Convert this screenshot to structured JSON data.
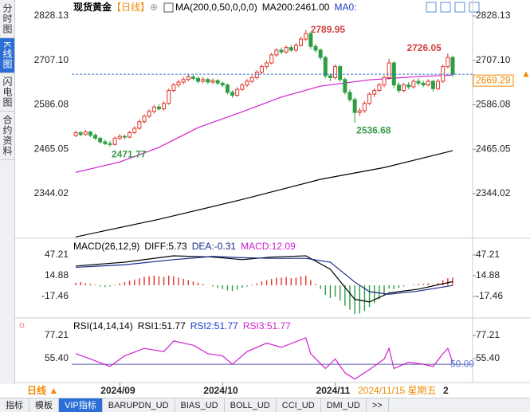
{
  "sidebar_tabs": [
    "分时图",
    "K线图",
    "闪电图",
    "合约资料"
  ],
  "toolbar": {
    "title": "现货黄金",
    "period": "【日线】"
  },
  "chart_data": [
    {
      "type": "candlestick",
      "indicator": "MA(200,0,50,0,0,0)",
      "legend": [
        "MA200:2461.00",
        "MA0:"
      ],
      "up_color": "#e0352b",
      "down_color": "#2e9e43",
      "ylim": [
        2224.5,
        2854.2
      ],
      "yticks": [
        2828.13,
        {
          "value": 2707.1,
          "label": "2707.10"
        },
        2586.08,
        2465.05,
        2344.02
      ],
      "candles": [
        [
          2502,
          2516,
          2498,
          2510
        ],
        [
          2510,
          2514,
          2500,
          2505
        ],
        [
          2505,
          2518,
          2502,
          2512
        ],
        [
          2512,
          2515,
          2498,
          2503
        ],
        [
          2503,
          2508,
          2490,
          2495
        ],
        [
          2495,
          2499,
          2480,
          2485
        ],
        [
          2485,
          2492,
          2476,
          2480
        ],
        [
          2480,
          2488,
          2471.77,
          2478
        ],
        [
          2478,
          2500,
          2475,
          2495
        ],
        [
          2495,
          2506,
          2490,
          2500
        ],
        [
          2500,
          2505,
          2492,
          2498
        ],
        [
          2498,
          2515,
          2495,
          2510
        ],
        [
          2510,
          2528,
          2506,
          2522
        ],
        [
          2522,
          2546,
          2518,
          2540
        ],
        [
          2540,
          2560,
          2535,
          2555
        ],
        [
          2555,
          2574,
          2550,
          2568
        ],
        [
          2568,
          2586,
          2562,
          2580
        ],
        [
          2580,
          2588,
          2570,
          2575
        ],
        [
          2575,
          2596,
          2570,
          2590
        ],
        [
          2590,
          2630,
          2586,
          2625
        ],
        [
          2625,
          2646,
          2620,
          2640
        ],
        [
          2640,
          2654,
          2634,
          2648
        ],
        [
          2648,
          2662,
          2642,
          2655
        ],
        [
          2655,
          2670,
          2650,
          2662
        ],
        [
          2662,
          2668,
          2652,
          2658
        ],
        [
          2658,
          2664,
          2644,
          2650
        ],
        [
          2650,
          2662,
          2645,
          2655
        ],
        [
          2655,
          2660,
          2642,
          2648
        ],
        [
          2648,
          2658,
          2643,
          2652
        ],
        [
          2652,
          2656,
          2640,
          2645
        ],
        [
          2645,
          2650,
          2634,
          2640
        ],
        [
          2640,
          2644,
          2614,
          2620
        ],
        [
          2620,
          2626,
          2605,
          2612
        ],
        [
          2612,
          2634,
          2608,
          2628
        ],
        [
          2628,
          2646,
          2624,
          2640
        ],
        [
          2640,
          2656,
          2635,
          2650
        ],
        [
          2650,
          2666,
          2645,
          2660
        ],
        [
          2660,
          2680,
          2655,
          2675
        ],
        [
          2675,
          2696,
          2670,
          2690
        ],
        [
          2690,
          2706,
          2684,
          2700
        ],
        [
          2700,
          2728,
          2696,
          2722
        ],
        [
          2722,
          2740,
          2716,
          2735
        ],
        [
          2735,
          2742,
          2724,
          2730
        ],
        [
          2730,
          2748,
          2725,
          2742
        ],
        [
          2742,
          2750,
          2730,
          2735
        ],
        [
          2735,
          2754,
          2730,
          2748
        ],
        [
          2748,
          2772,
          2744,
          2765
        ],
        [
          2765,
          2789.95,
          2760,
          2780
        ],
        [
          2780,
          2784,
          2738,
          2745
        ],
        [
          2745,
          2752,
          2728,
          2735
        ],
        [
          2735,
          2740,
          2708,
          2715
        ],
        [
          2715,
          2720,
          2658,
          2665
        ],
        [
          2665,
          2672,
          2650,
          2660
        ],
        [
          2660,
          2696,
          2655,
          2690
        ],
        [
          2690,
          2694,
          2648,
          2655
        ],
        [
          2655,
          2660,
          2614,
          2620
        ],
        [
          2620,
          2628,
          2594,
          2600
        ],
        [
          2600,
          2606,
          2536.68,
          2565
        ],
        [
          2565,
          2578,
          2556,
          2570
        ],
        [
          2570,
          2596,
          2564,
          2590
        ],
        [
          2590,
          2620,
          2585,
          2615
        ],
        [
          2615,
          2632,
          2608,
          2625
        ],
        [
          2625,
          2646,
          2620,
          2640
        ],
        [
          2640,
          2666,
          2634,
          2660
        ],
        [
          2660,
          2712,
          2655,
          2700
        ],
        [
          2700,
          2704,
          2632,
          2640
        ],
        [
          2640,
          2648,
          2618,
          2625
        ],
        [
          2625,
          2646,
          2620,
          2640
        ],
        [
          2640,
          2648,
          2628,
          2635
        ],
        [
          2635,
          2656,
          2630,
          2650
        ],
        [
          2650,
          2658,
          2638,
          2645
        ],
        [
          2645,
          2652,
          2634,
          2640
        ],
        [
          2640,
          2656,
          2636,
          2650
        ],
        [
          2650,
          2654,
          2622,
          2630
        ],
        [
          2630,
          2656,
          2626,
          2650
        ],
        [
          2650,
          2696,
          2645,
          2690
        ],
        [
          2690,
          2726.05,
          2685,
          2715
        ],
        [
          2715,
          2720,
          2662,
          2669.29
        ]
      ],
      "series": [
        {
          "name": "MA200",
          "color": "#000000",
          "x": [
            0,
            17,
            34,
            50,
            63,
            77
          ],
          "values": [
            2226,
            2274,
            2328,
            2383,
            2415,
            2461
          ]
        },
        {
          "name": "MA0",
          "color": "#d020d0",
          "x": [
            0,
            9,
            17,
            25,
            34,
            42,
            50,
            60,
            70,
            77
          ],
          "values": [
            2402,
            2430,
            2470,
            2524,
            2567,
            2607,
            2637,
            2654,
            2663,
            2667
          ]
        }
      ]
    },
    {
      "type": "macd",
      "legend": [
        "MACD(26,12,9)",
        "DIFF:5.73",
        "DEA:-0.31",
        "MACD:12.09"
      ],
      "ylim": [
        -49.8,
        69.6
      ],
      "yticks": [
        47.21,
        14.88,
        -17.46
      ],
      "histogram": [
        4,
        5,
        3,
        2,
        1,
        -2,
        -3,
        -2,
        1,
        3,
        5,
        7,
        9,
        11,
        13,
        14,
        15,
        14,
        13,
        15,
        14,
        12,
        10,
        8,
        6,
        4,
        2,
        0,
        -2,
        -4,
        -6,
        -8,
        -9,
        -7,
        -4,
        -2,
        1,
        3,
        6,
        8,
        10,
        12,
        12,
        13,
        11,
        12,
        14,
        15,
        8,
        2,
        -6,
        -15,
        -20,
        -18,
        -24,
        -32,
        -38,
        -45,
        -44,
        -40,
        -34,
        -28,
        -22,
        -15,
        -5,
        -6,
        -4,
        -2,
        0,
        1,
        2,
        2,
        3,
        1,
        4,
        8,
        11,
        12.09
      ],
      "up_color": "#e0352b",
      "down_color": "#2e9e43",
      "series": [
        {
          "name": "DIFF",
          "color": "#000000",
          "x": [
            0,
            10,
            20,
            28,
            34,
            40,
            47,
            52,
            57,
            60,
            64,
            70,
            77
          ],
          "values": [
            30,
            36,
            46,
            44,
            40,
            44,
            46,
            25,
            -22,
            -26,
            -12,
            -6,
            5.73
          ]
        },
        {
          "name": "DEA",
          "color": "#1a2a8a",
          "x": [
            0,
            10,
            20,
            28,
            34,
            40,
            47,
            52,
            57,
            60,
            64,
            70,
            77
          ],
          "values": [
            28,
            32,
            40,
            45,
            43,
            42,
            42,
            36,
            5,
            -10,
            -14,
            -9,
            -0.31
          ]
        }
      ]
    },
    {
      "type": "rsi",
      "legend": [
        "RSI(14,14,14)",
        "RSI1:51.77",
        "RSI2:51.77",
        "RSI3:51.77"
      ],
      "ylim": [
        34.3,
        91.5
      ],
      "yticks": [
        77.21,
        {
          "value": 55.4,
          "label": "55.40"
        }
      ],
      "level": {
        "value": 50,
        "label": "50.00"
      },
      "series": [
        {
          "name": "RSI1",
          "color": "#d020d0",
          "x": [
            0,
            3,
            7,
            10,
            14,
            18,
            20,
            24,
            27,
            30,
            32,
            35,
            39,
            42,
            47,
            48,
            51,
            53,
            55,
            57,
            60,
            63,
            64,
            65,
            68,
            71,
            73,
            75,
            76,
            77
          ],
          "values": [
            60,
            55,
            48,
            58,
            65,
            62,
            72,
            68,
            60,
            58,
            50,
            62,
            70,
            66,
            75,
            60,
            46,
            55,
            42,
            36,
            45,
            55,
            65,
            46,
            52,
            50,
            48,
            60,
            65,
            51.77
          ]
        }
      ]
    }
  ],
  "x_axis": {
    "period": "日线 ▲",
    "labels": [
      {
        "candle": 9,
        "label": "2024/09"
      },
      {
        "candle": 30,
        "label": "2024/10"
      },
      {
        "candle": 53,
        "label": "2024/11"
      }
    ],
    "cursor_date": "2024/11/15 星期五",
    "tail": "2"
  },
  "bottom_tabs": [
    "指标",
    "模板",
    "VIP指标",
    "BARUPDN_UD",
    "BIAS_UD",
    "BOLL_UD",
    "CCI_UD",
    "DMI_UD",
    ">>"
  ]
}
